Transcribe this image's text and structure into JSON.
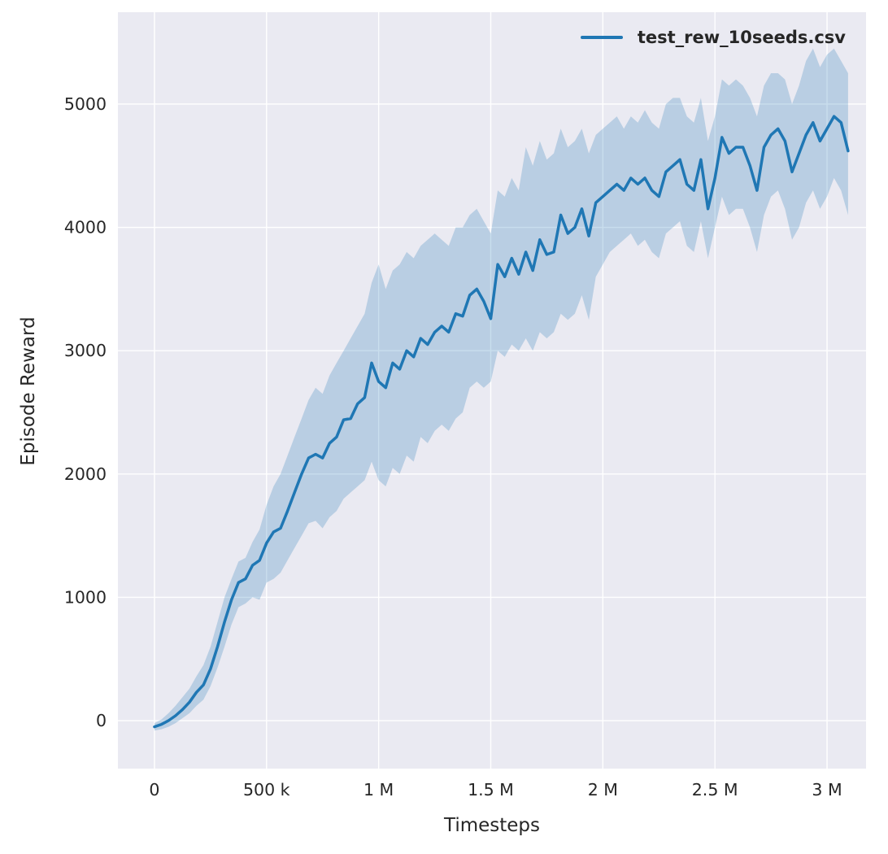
{
  "figure": {
    "background": "#ffffff",
    "axes_background": "#eaeaf2",
    "grid_color": "#ffffff",
    "text_color": "#262626"
  },
  "legend": {
    "label": "test_rew_10seeds.csv",
    "line_color": "#1f77b4"
  },
  "chart_data": {
    "type": "line",
    "title": "",
    "xlabel": "Timesteps",
    "ylabel": "Episode Reward",
    "grid": true,
    "legend_position": "upper right",
    "xlim": [
      -163000,
      3174000
    ],
    "ylim": [
      -389,
      5745
    ],
    "x_ticks": [
      0,
      500000,
      1000000,
      1500000,
      2000000,
      2500000,
      3000000
    ],
    "x_tick_labels": [
      "0",
      "500 k",
      "1 M",
      "1.5 M",
      "2 M",
      "2.5 M",
      "3 M"
    ],
    "y_ticks": [
      0,
      1000,
      2000,
      3000,
      4000,
      5000
    ],
    "y_tick_labels": [
      "0",
      "1000",
      "2000",
      "3000",
      "4000",
      "5000"
    ],
    "series": [
      {
        "name": "test_rew_10seeds.csv",
        "color": "#1f77b4",
        "line_width": 3.5,
        "band_fill_opacity": 0.24,
        "x": [
          0,
          31250,
          62500,
          93750,
          125000,
          156250,
          187500,
          218750,
          250000,
          281250,
          312500,
          343750,
          375000,
          406250,
          437500,
          468750,
          500000,
          531250,
          562500,
          593750,
          625000,
          656250,
          687500,
          718750,
          750000,
          781250,
          812500,
          843750,
          875000,
          906250,
          937500,
          968750,
          1000000,
          1031250,
          1062500,
          1093750,
          1125000,
          1156250,
          1187500,
          1218750,
          1250000,
          1281250,
          1312500,
          1343750,
          1375000,
          1406250,
          1437500,
          1468750,
          1500000,
          1531250,
          1562500,
          1593750,
          1625000,
          1656250,
          1687500,
          1718750,
          1750000,
          1781250,
          1812500,
          1843750,
          1875000,
          1906250,
          1937500,
          1968750,
          2000000,
          2031250,
          2062500,
          2093750,
          2125000,
          2156250,
          2187500,
          2218750,
          2250000,
          2281250,
          2312500,
          2343750,
          2375000,
          2406250,
          2437500,
          2468750,
          2500000,
          2531250,
          2562500,
          2593750,
          2625000,
          2656250,
          2687500,
          2718750,
          2750000,
          2781250,
          2812500,
          2843750,
          2875000,
          2906250,
          2937500,
          2968750,
          3000000,
          3031250,
          3062500,
          3093750
        ],
        "mean": [
          -50,
          -30,
          0,
          40,
          90,
          150,
          230,
          290,
          420,
          600,
          800,
          980,
          1120,
          1150,
          1260,
          1300,
          1440,
          1530,
          1560,
          1700,
          1850,
          2000,
          2130,
          2160,
          2130,
          2250,
          2300,
          2440,
          2450,
          2570,
          2620,
          2900,
          2750,
          2700,
          2900,
          2850,
          3000,
          2950,
          3100,
          3050,
          3150,
          3200,
          3150,
          3300,
          3280,
          3450,
          3500,
          3400,
          3260,
          3700,
          3600,
          3750,
          3620,
          3800,
          3650,
          3900,
          3780,
          3800,
          4100,
          3950,
          4000,
          4150,
          3930,
          4200,
          4250,
          4300,
          4350,
          4300,
          4400,
          4350,
          4400,
          4300,
          4250,
          4450,
          4500,
          4550,
          4350,
          4300,
          4550,
          4150,
          4400,
          4730,
          4600,
          4650,
          4650,
          4500,
          4300,
          4650,
          4750,
          4800,
          4700,
          4450,
          4600,
          4750,
          4850,
          4700,
          4800,
          4900,
          4850,
          4620
        ],
        "band_low": [
          -80,
          -70,
          -50,
          -20,
          20,
          60,
          120,
          170,
          280,
          430,
          600,
          780,
          920,
          950,
          1000,
          980,
          1120,
          1150,
          1200,
          1300,
          1400,
          1500,
          1600,
          1620,
          1560,
          1650,
          1700,
          1800,
          1850,
          1900,
          1950,
          2100,
          1950,
          1900,
          2050,
          2000,
          2150,
          2100,
          2300,
          2250,
          2350,
          2400,
          2350,
          2450,
          2500,
          2700,
          2750,
          2700,
          2750,
          3000,
          2950,
          3050,
          3000,
          3100,
          3000,
          3150,
          3100,
          3150,
          3300,
          3250,
          3300,
          3450,
          3250,
          3600,
          3700,
          3800,
          3850,
          3900,
          3950,
          3850,
          3900,
          3800,
          3750,
          3950,
          4000,
          4050,
          3850,
          3800,
          4050,
          3750,
          4000,
          4250,
          4100,
          4150,
          4150,
          4000,
          3800,
          4100,
          4250,
          4300,
          4150,
          3900,
          4000,
          4200,
          4300,
          4150,
          4250,
          4400,
          4300,
          4100
        ],
        "band_high": [
          -20,
          10,
          60,
          120,
          190,
          260,
          360,
          450,
          600,
          800,
          1000,
          1150,
          1290,
          1320,
          1450,
          1550,
          1750,
          1900,
          2000,
          2150,
          2300,
          2450,
          2600,
          2700,
          2650,
          2800,
          2900,
          3000,
          3100,
          3200,
          3300,
          3550,
          3700,
          3500,
          3650,
          3700,
          3800,
          3750,
          3850,
          3900,
          3950,
          3900,
          3850,
          4000,
          4000,
          4100,
          4150,
          4050,
          3950,
          4300,
          4250,
          4400,
          4300,
          4650,
          4500,
          4700,
          4550,
          4600,
          4800,
          4650,
          4700,
          4800,
          4600,
          4750,
          4800,
          4850,
          4900,
          4800,
          4900,
          4850,
          4950,
          4850,
          4800,
          5000,
          5050,
          5050,
          4900,
          4850,
          5050,
          4700,
          4900,
          5200,
          5150,
          5200,
          5150,
          5050,
          4900,
          5150,
          5250,
          5250,
          5200,
          5000,
          5150,
          5350,
          5450,
          5300,
          5400,
          5450,
          5350,
          5250
        ]
      }
    ]
  }
}
